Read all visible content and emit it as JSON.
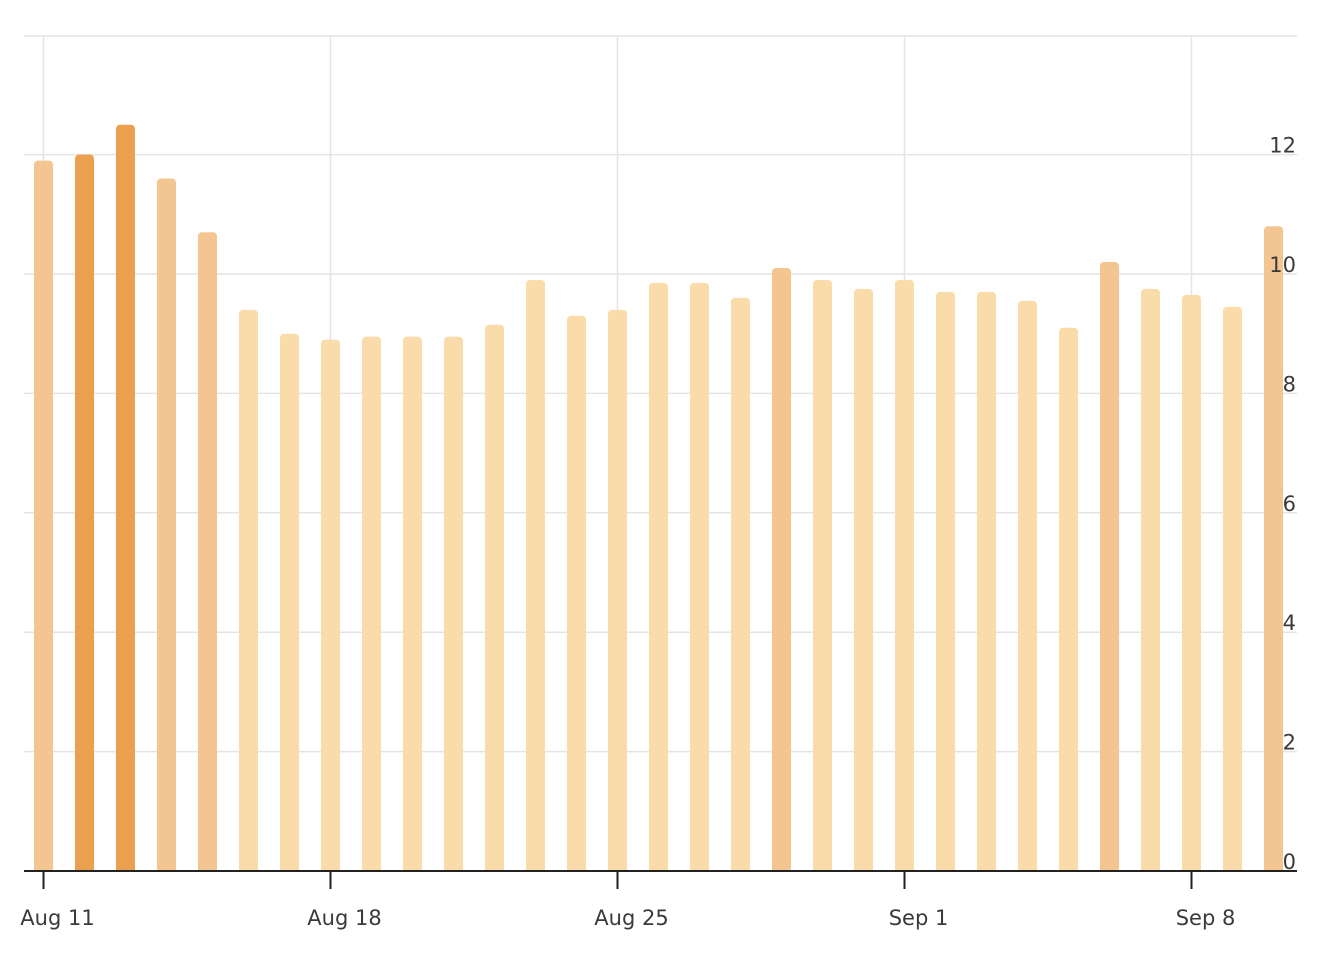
{
  "chart_data": {
    "type": "bar",
    "title": "",
    "xlabel": "",
    "ylabel": "",
    "ylim": [
      0,
      14
    ],
    "y_ticks": [
      "0",
      "2",
      "4",
      "6",
      "8",
      "10",
      "12"
    ],
    "y_tick_values": [
      0,
      2,
      4,
      6,
      8,
      10,
      12
    ],
    "y_axis_side": "right",
    "grid": true,
    "x_ticks": [
      {
        "label": "Aug 11",
        "index": 0
      },
      {
        "label": "Aug 18",
        "index": 7
      },
      {
        "label": "Aug 25",
        "index": 14
      },
      {
        "label": "Sep 1",
        "index": 21
      },
      {
        "label": "Sep 8",
        "index": 28
      }
    ],
    "categories": [
      "Aug 11",
      "Aug 12",
      "Aug 13",
      "Aug 14",
      "Aug 15",
      "Aug 16",
      "Aug 17",
      "Aug 18",
      "Aug 19",
      "Aug 20",
      "Aug 21",
      "Aug 22",
      "Aug 23",
      "Aug 24",
      "Aug 25",
      "Aug 26",
      "Aug 27",
      "Aug 28",
      "Aug 29",
      "Aug 30",
      "Aug 31",
      "Sep 1",
      "Sep 2",
      "Sep 3",
      "Sep 4",
      "Sep 5",
      "Sep 6",
      "Sep 7",
      "Sep 8",
      "Sep 9",
      "Sep 10"
    ],
    "values": [
      11.9,
      12.0,
      12.5,
      11.6,
      10.7,
      9.4,
      9.0,
      8.9,
      8.95,
      8.95,
      8.95,
      9.15,
      9.9,
      9.3,
      9.4,
      9.85,
      9.85,
      9.6,
      10.1,
      9.9,
      9.75,
      9.9,
      9.7,
      9.7,
      9.55,
      9.1,
      10.2,
      9.75,
      9.65,
      9.45,
      10.8
    ],
    "bar_colors": [
      "#f3c590",
      "#eaa04e",
      "#eaa04e",
      "#f3c590",
      "#f3c590",
      "#f9dca9",
      "#f9dca9",
      "#f9dca9",
      "#f9dca9",
      "#f9dca9",
      "#f9dca9",
      "#f9dca9",
      "#f9dca9",
      "#f9dca9",
      "#f9dca9",
      "#f9dca9",
      "#f9dca9",
      "#f9dca9",
      "#f3c590",
      "#f9dca9",
      "#f9dca9",
      "#f9dca9",
      "#f9dca9",
      "#f9dca9",
      "#f9dca9",
      "#f9dca9",
      "#f3c590",
      "#f9dca9",
      "#f9dca9",
      "#f9dca9",
      "#f3c590"
    ]
  }
}
